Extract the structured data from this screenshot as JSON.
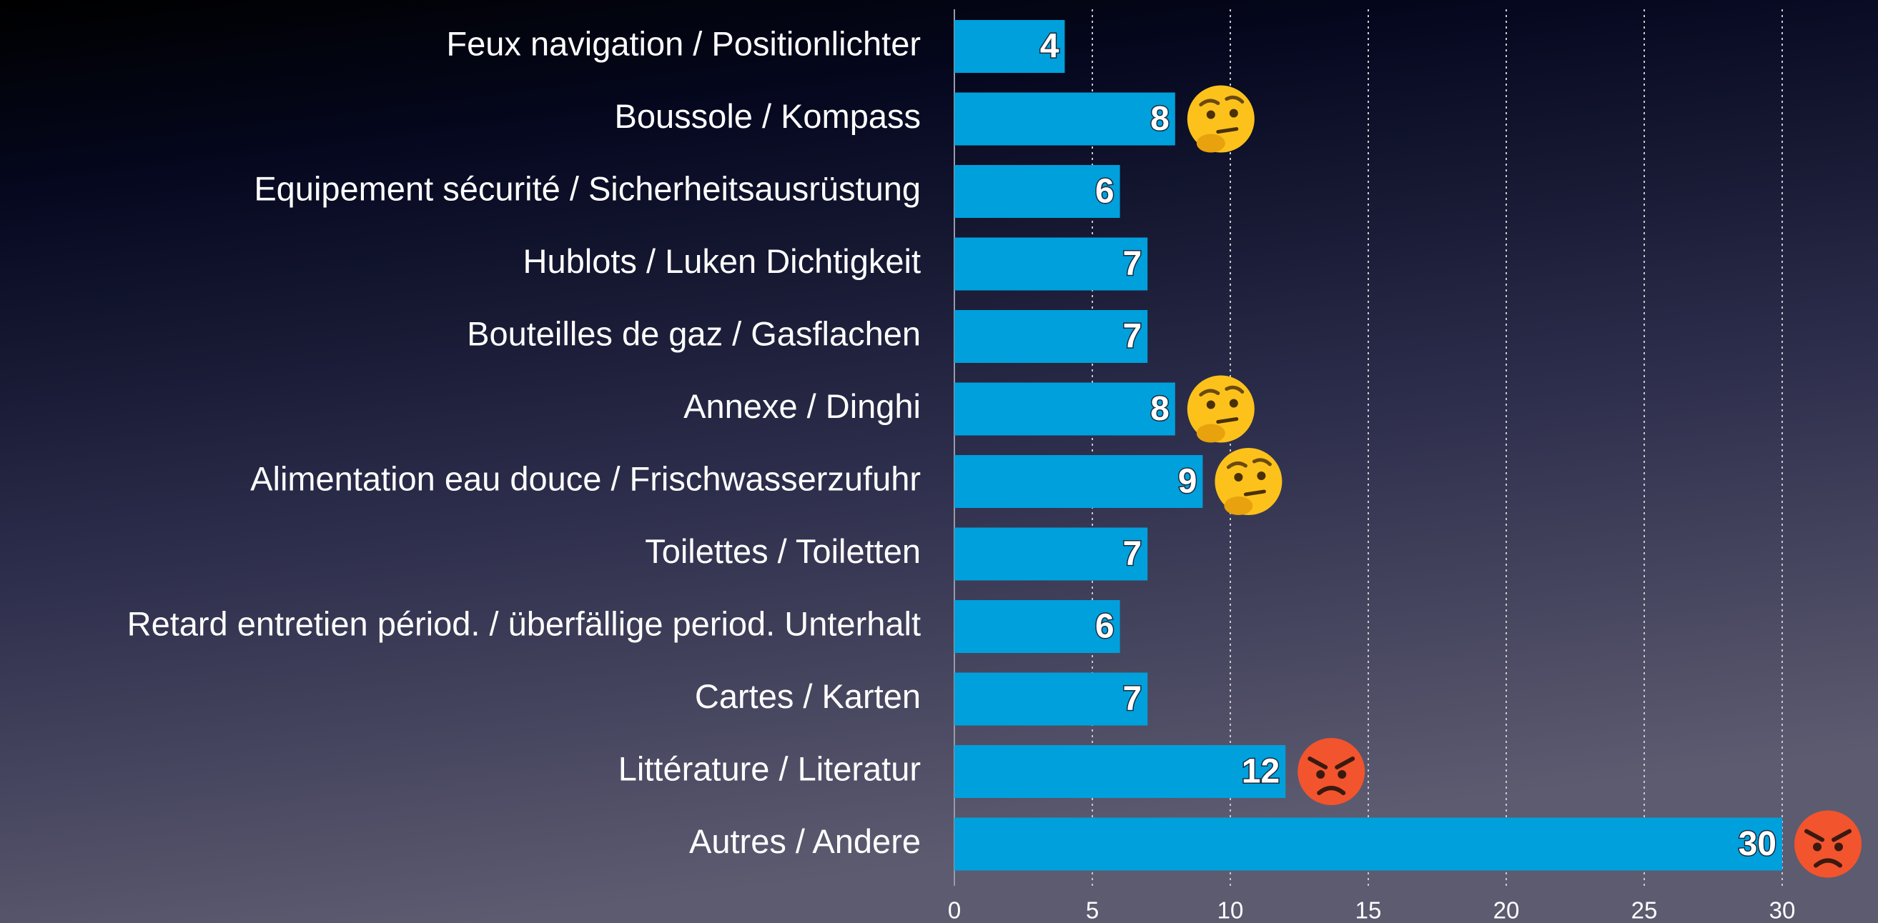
{
  "chart_data": {
    "type": "barh",
    "categories": [
      "Feux navigation / Positionlichter",
      "Boussole / Kompass",
      "Equipement sécurité / Sicherheitsausrüstung",
      "Hublots / Luken Dichtigkeit",
      "Bouteilles de gaz / Gasflachen",
      "Annexe / Dinghi",
      "Alimentation eau douce / Frischwasserzufuhr",
      "Toilettes / Toiletten",
      "Retard entretien périod. / überfällige period. Unterhalt",
      "Cartes / Karten",
      "Littérature / Literatur",
      "Autres / Andere"
    ],
    "values": [
      4,
      8,
      6,
      7,
      7,
      8,
      9,
      7,
      6,
      7,
      12,
      30
    ],
    "color": "#00a0dc",
    "xlim": [
      0,
      30
    ],
    "xticks": [
      0,
      5,
      10,
      15,
      20,
      25,
      30
    ],
    "grid": true
  }
}
